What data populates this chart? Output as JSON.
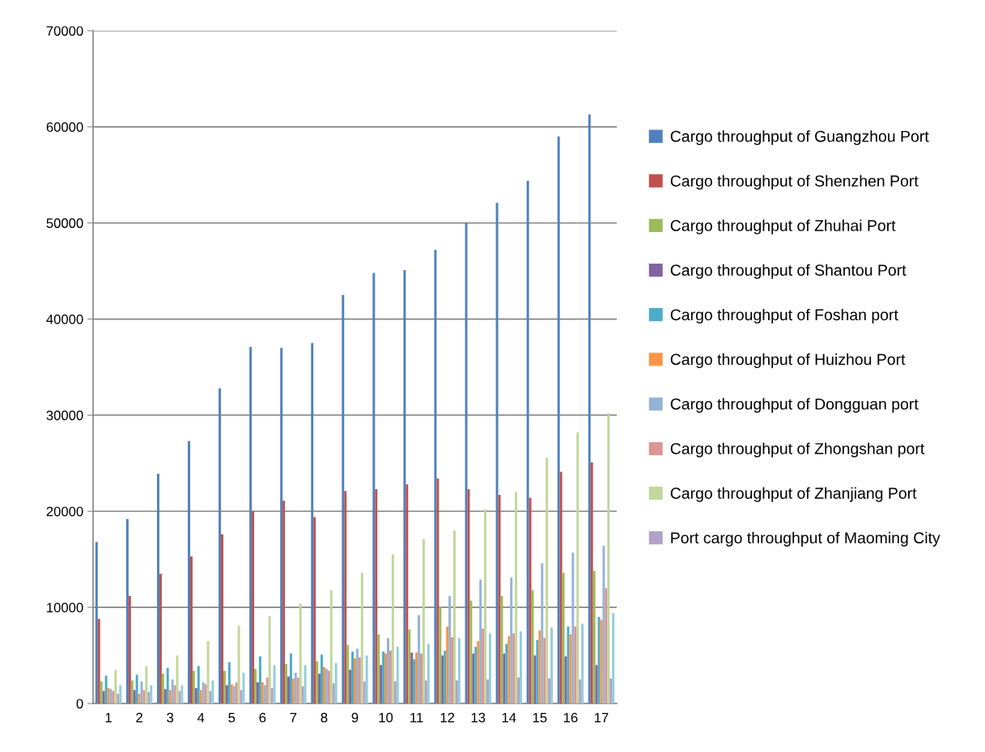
{
  "chart_data": {
    "type": "bar",
    "categories": [
      "1",
      "2",
      "3",
      "4",
      "5",
      "6",
      "7",
      "8",
      "9",
      "10",
      "11",
      "12",
      "13",
      "14",
      "15",
      "16",
      "17"
    ],
    "series": [
      {
        "name": "Cargo throughput of Guangzhou Port",
        "color": "#4f81bd",
        "values": [
          16800,
          19200,
          23900,
          27300,
          32800,
          37100,
          37000,
          37500,
          42500,
          44800,
          45100,
          47200,
          50000,
          52100,
          54400,
          59000,
          61300
        ]
      },
      {
        "name": "Cargo throughput of Shenzhen Port",
        "color": "#c0504d",
        "values": [
          8800,
          11200,
          13500,
          15300,
          17600,
          20000,
          21100,
          19400,
          22100,
          22300,
          22800,
          23400,
          22300,
          21700,
          21400,
          24100,
          25100
        ]
      },
      {
        "name": "Cargo throughput of Zhuhai Port",
        "color": "#9bbb59",
        "values": [
          2300,
          2400,
          3100,
          3400,
          3400,
          3600,
          4100,
          4400,
          6100,
          7200,
          7700,
          10000,
          10700,
          11200,
          11800,
          13600,
          13800
        ]
      },
      {
        "name": "Cargo throughput of Shantou Port",
        "color": "#8064a2",
        "values": [
          1300,
          1400,
          1500,
          1600,
          1900,
          2200,
          2800,
          3100,
          3500,
          4000,
          5300,
          5000,
          5200,
          5200,
          5000,
          4900,
          4000
        ]
      },
      {
        "name": "Cargo throughput of Foshan port",
        "color": "#4bacc6",
        "values": [
          2900,
          3000,
          3700,
          3900,
          4300,
          4900,
          5200,
          5100,
          5400,
          5400,
          4600,
          5500,
          5900,
          6200,
          6600,
          8000,
          9000
        ]
      },
      {
        "name": "Cargo throughput of Huizhou Port",
        "color": "#f79646",
        "values": [
          1600,
          1000,
          1400,
          1400,
          2000,
          2200,
          2600,
          3800,
          4700,
          5200,
          5300,
          8000,
          6500,
          7000,
          7600,
          7200,
          8700
        ]
      },
      {
        "name": "Cargo throughput of Dongguan port",
        "color": "#95b3d7",
        "values": [
          1500,
          2300,
          2500,
          2200,
          1800,
          1900,
          3200,
          3600,
          5700,
          6800,
          9200,
          11200,
          12900,
          13100,
          14600,
          15700,
          16400
        ]
      },
      {
        "name": "Cargo throughput of Zhongshan port",
        "color": "#d99694",
        "values": [
          1300,
          1400,
          1900,
          2000,
          2200,
          2700,
          2700,
          3400,
          4800,
          5500,
          5200,
          6900,
          7800,
          7300,
          6800,
          8000,
          12000
        ]
      },
      {
        "name": "Cargo throughput of Zhanjiang Port",
        "color": "#c3d69b",
        "values": [
          3500,
          3900,
          5000,
          6500,
          8100,
          9100,
          10400,
          11800,
          13600,
          15500,
          17100,
          18000,
          20200,
          22000,
          25600,
          28200,
          30200
        ]
      },
      {
        "name": "Port cargo throughput of Maoming City",
        "color": "#b2a2c7",
        "values": [
          1000,
          1200,
          1300,
          1300,
          1400,
          1600,
          1800,
          2100,
          2300,
          2300,
          2400,
          2400,
          2500,
          2700,
          2600,
          2500,
          2600
        ]
      },
      {
        "color": "#93cddd",
        "values": [
          1900,
          1900,
          1900,
          2400,
          3200,
          4000,
          4000,
          4200,
          5000,
          5900,
          6200,
          6800,
          7300,
          7500,
          7900,
          8300,
          9400
        ]
      }
    ],
    "ylim": [
      0,
      70000
    ],
    "yticks": [
      0,
      10000,
      20000,
      30000,
      40000,
      50000,
      60000,
      70000
    ],
    "grid": "y",
    "legend": "right"
  }
}
